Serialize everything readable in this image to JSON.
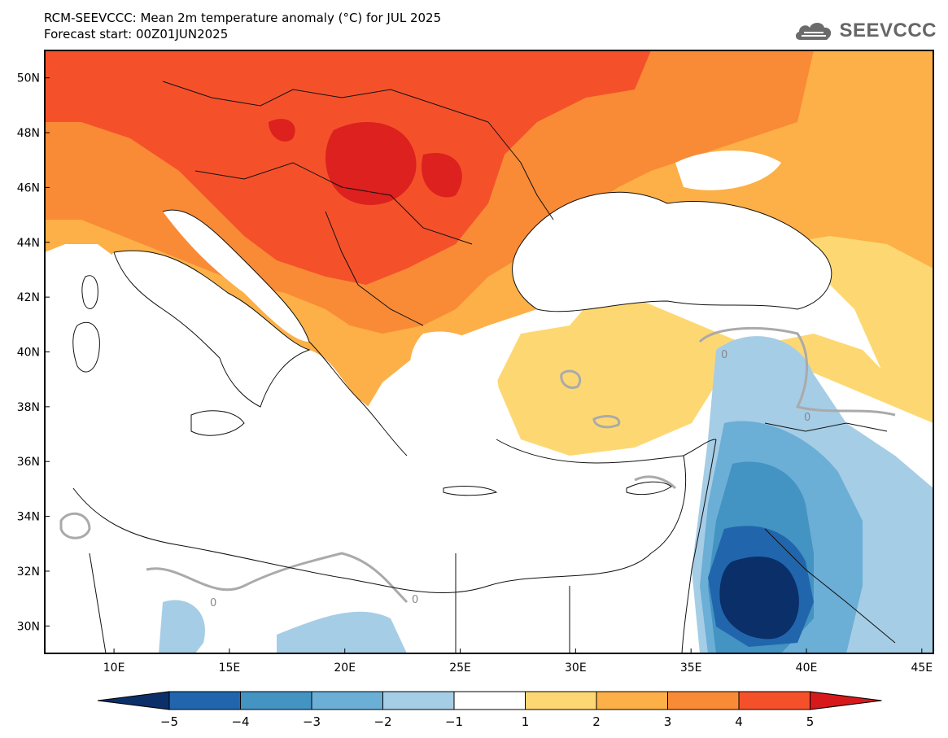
{
  "title": {
    "line1": "RCM-SEEVCCC: Mean 2m temperature anomaly (°C) for JUL 2025",
    "line2": "Forecast start: 00Z01JUN2025"
  },
  "logo": {
    "text": "SEEVCCC",
    "icon": "cloud-icon"
  },
  "map": {
    "lat_labels": [
      {
        "value": 50,
        "label": "50N"
      },
      {
        "value": 48,
        "label": "48N"
      },
      {
        "value": 46,
        "label": "46N"
      },
      {
        "value": 44,
        "label": "44N"
      },
      {
        "value": 42,
        "label": "42N"
      },
      {
        "value": 40,
        "label": "40N"
      },
      {
        "value": 38,
        "label": "38N"
      },
      {
        "value": 36,
        "label": "36N"
      },
      {
        "value": 34,
        "label": "34N"
      },
      {
        "value": 32,
        "label": "32N"
      },
      {
        "value": 30,
        "label": "30N"
      }
    ],
    "lon_labels": [
      {
        "value": 10,
        "label": "10E"
      },
      {
        "value": 15,
        "label": "15E"
      },
      {
        "value": 20,
        "label": "20E"
      },
      {
        "value": 25,
        "label": "25E"
      },
      {
        "value": 30,
        "label": "30E"
      },
      {
        "value": 35,
        "label": "35E"
      },
      {
        "value": 40,
        "label": "40E"
      },
      {
        "value": 45,
        "label": "45E"
      }
    ],
    "lon_range": [
      7,
      45.5
    ],
    "lat_range": [
      29,
      51
    ],
    "contour_label": "0"
  },
  "colorbar": {
    "labels": [
      "−5",
      "−4",
      "−3",
      "−2",
      "−1",
      "1",
      "2",
      "3",
      "4",
      "5"
    ],
    "colors": [
      "#0b2f68",
      "#2166ac",
      "#4393c3",
      "#6baed6",
      "#a6cde6",
      "#ffffff",
      "#fdd872",
      "#fcb047",
      "#f98b36",
      "#f4512b",
      "#d7191c"
    ]
  }
}
